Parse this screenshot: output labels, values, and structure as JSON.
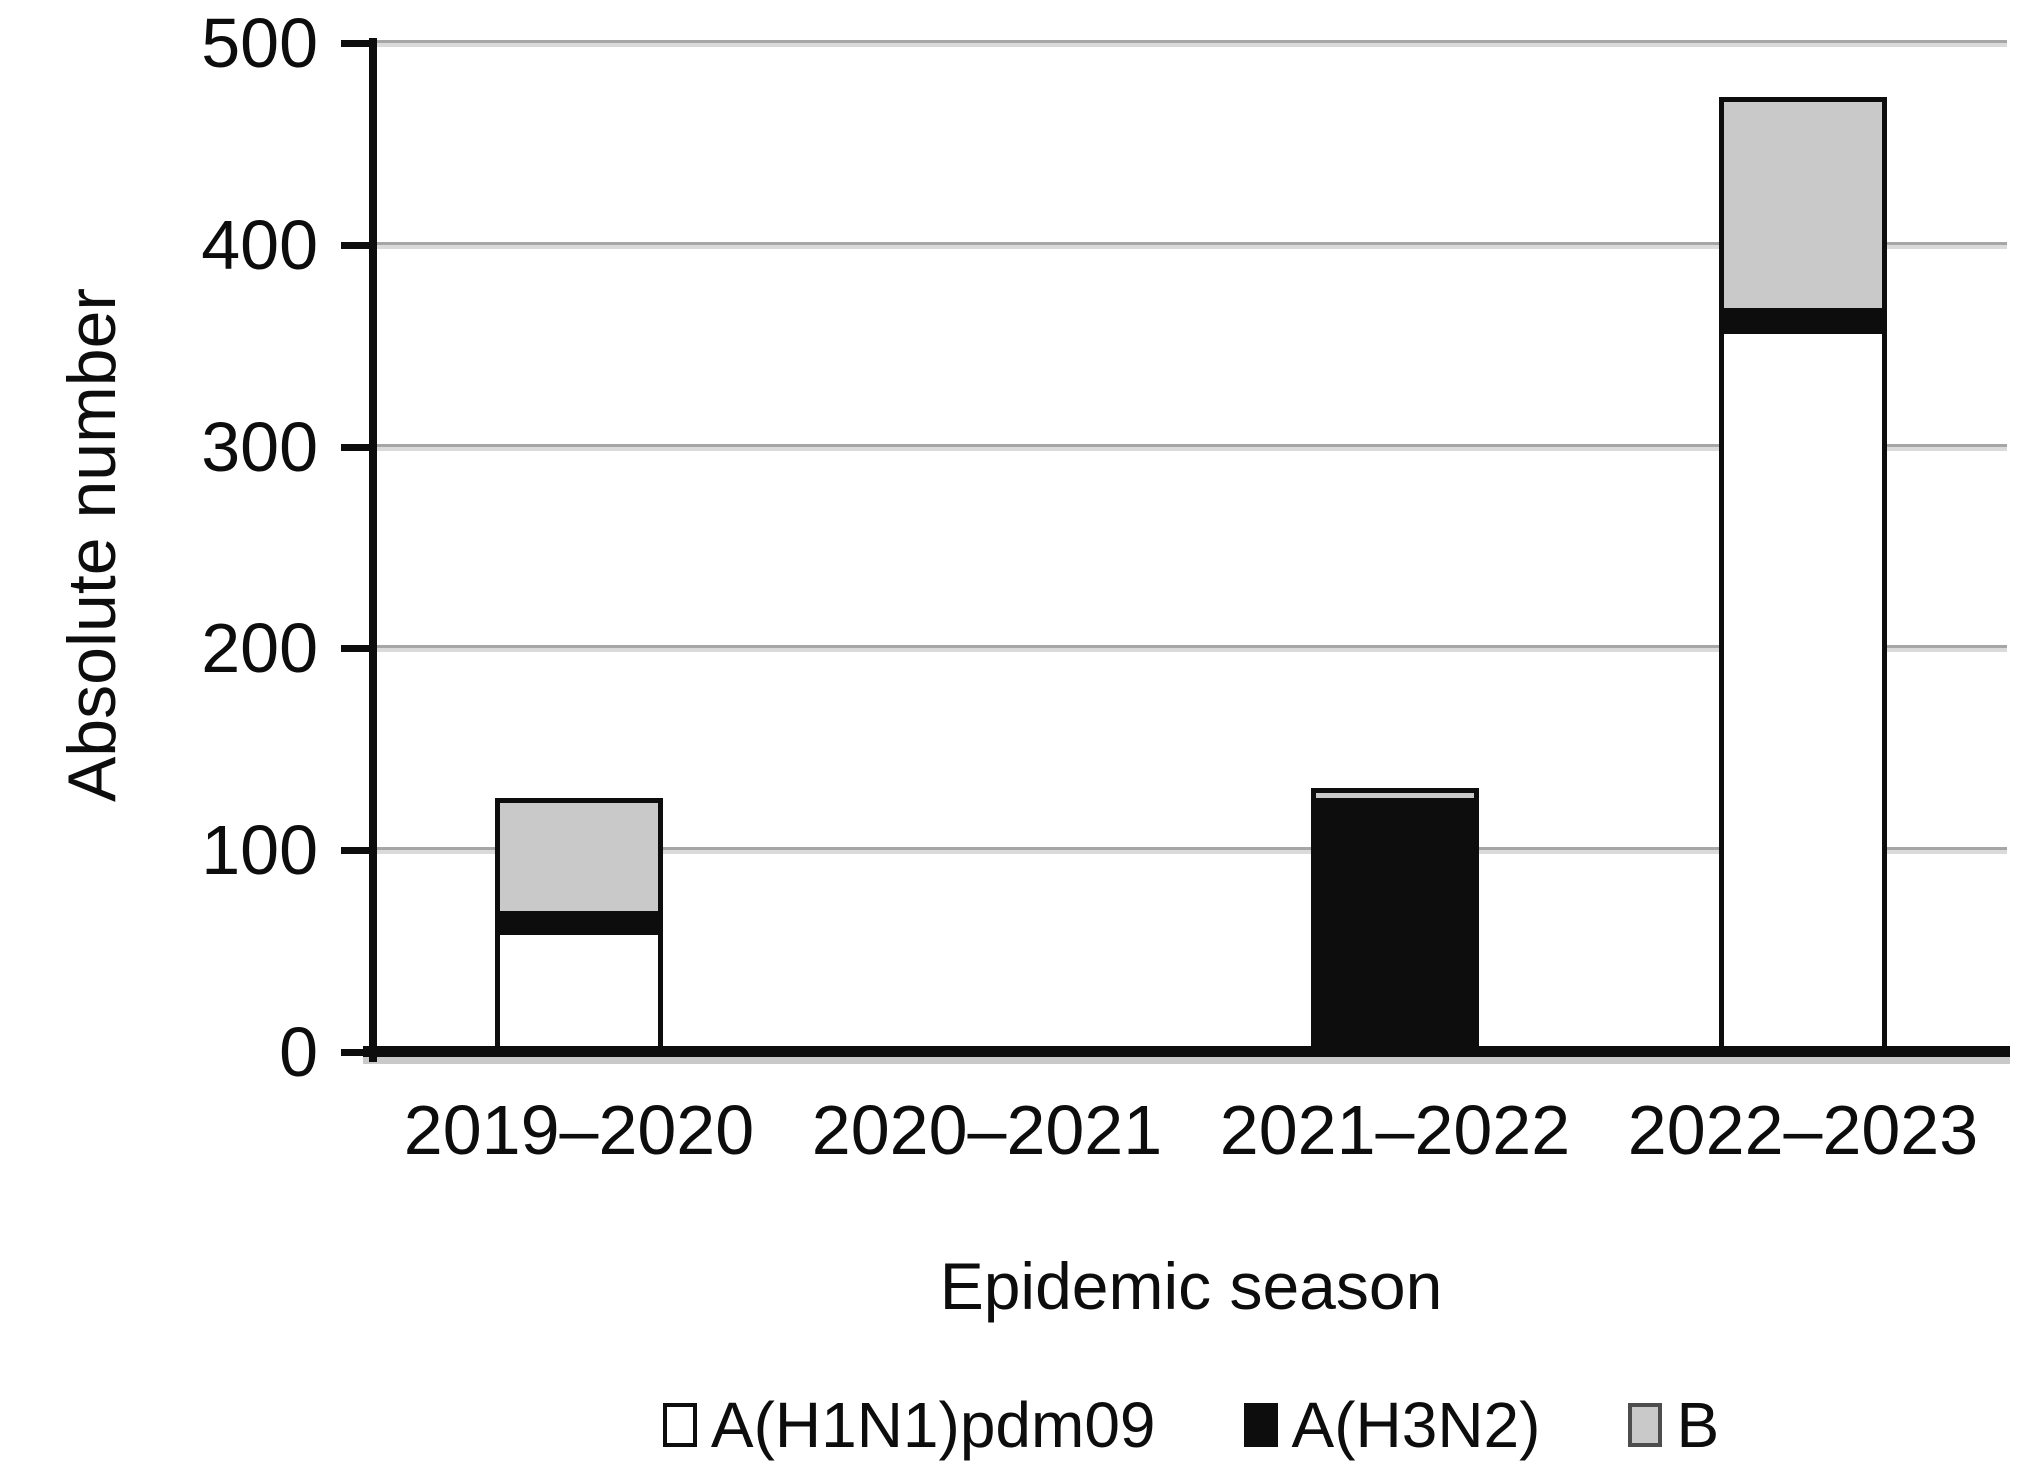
{
  "chart_data": {
    "type": "bar",
    "stacked": true,
    "title": "",
    "xlabel": "Epidemic season",
    "ylabel": "Absolute number",
    "categories": [
      "2019–2020",
      "2020–2021",
      "2021–2022",
      "2022–2023"
    ],
    "series": [
      {
        "name": "A(H1N1)pdm09",
        "color": "#ffffff",
        "swatch_border": "#0d0d0d",
        "values": [
          58,
          0,
          0,
          356
        ]
      },
      {
        "name": "A(H3N2)",
        "color": "#0d0d0d",
        "swatch_border": "#0d0d0d",
        "values": [
          12,
          3,
          126,
          13
        ]
      },
      {
        "name": "B",
        "color": "#c9c9c9",
        "swatch_border": "#4d4d4d",
        "values": [
          56,
          0,
          5,
          104
        ]
      }
    ],
    "totals": [
      126,
      3,
      131,
      473
    ],
    "ylim": [
      0,
      500
    ],
    "yticks": [
      0,
      100,
      200,
      300,
      400,
      500
    ],
    "grid": true,
    "legend_position": "bottom-center"
  },
  "axes": {
    "x_title": "Epidemic season",
    "y_title": "Absolute number"
  },
  "colors": {
    "background": "#ffffff",
    "axis": "#0d0d0d",
    "bar_border": "#0d0d0d",
    "gridline_dark": "#a6a6a6",
    "gridline_light": "#dadada",
    "axis_shadow": "#c9c9c9",
    "text": "#0d0d0d"
  }
}
